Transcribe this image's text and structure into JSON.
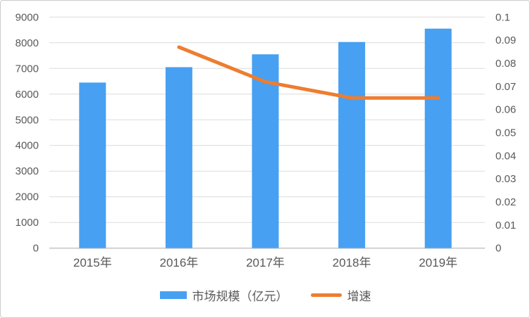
{
  "chart_data": {
    "type": "bar+line combo",
    "title": "",
    "categories": [
      "2015年",
      "2016年",
      "2017年",
      "2018年",
      "2019年"
    ],
    "series": [
      {
        "name": "市场规模（亿元）",
        "type": "bar",
        "axis": "left",
        "color": "#47A0F2",
        "values": [
          6450,
          7050,
          7550,
          8030,
          8550
        ]
      },
      {
        "name": "增速",
        "type": "line",
        "axis": "right",
        "color": "#ED7D31",
        "values": [
          null,
          0.087,
          0.072,
          0.065,
          0.065
        ]
      }
    ],
    "left_axis": {
      "min": 0,
      "max": 9000,
      "step": 1000,
      "tick_labels": [
        "0",
        "1000",
        "2000",
        "3000",
        "4000",
        "5000",
        "6000",
        "7000",
        "8000",
        "9000"
      ]
    },
    "right_axis": {
      "min": 0,
      "max": 0.1,
      "step": 0.01,
      "tick_labels": [
        "0",
        "0.01",
        "0.02",
        "0.03",
        "0.04",
        "0.05",
        "0.06",
        "0.07",
        "0.08",
        "0.09",
        "0.1"
      ]
    },
    "grid": true,
    "legend_position": "bottom",
    "colors": {
      "gridline": "#DBDBDB",
      "axis_line": "#D2D0D0",
      "text": "#595959",
      "background": "#FFFFFF",
      "border": "#CBCBCB"
    }
  }
}
